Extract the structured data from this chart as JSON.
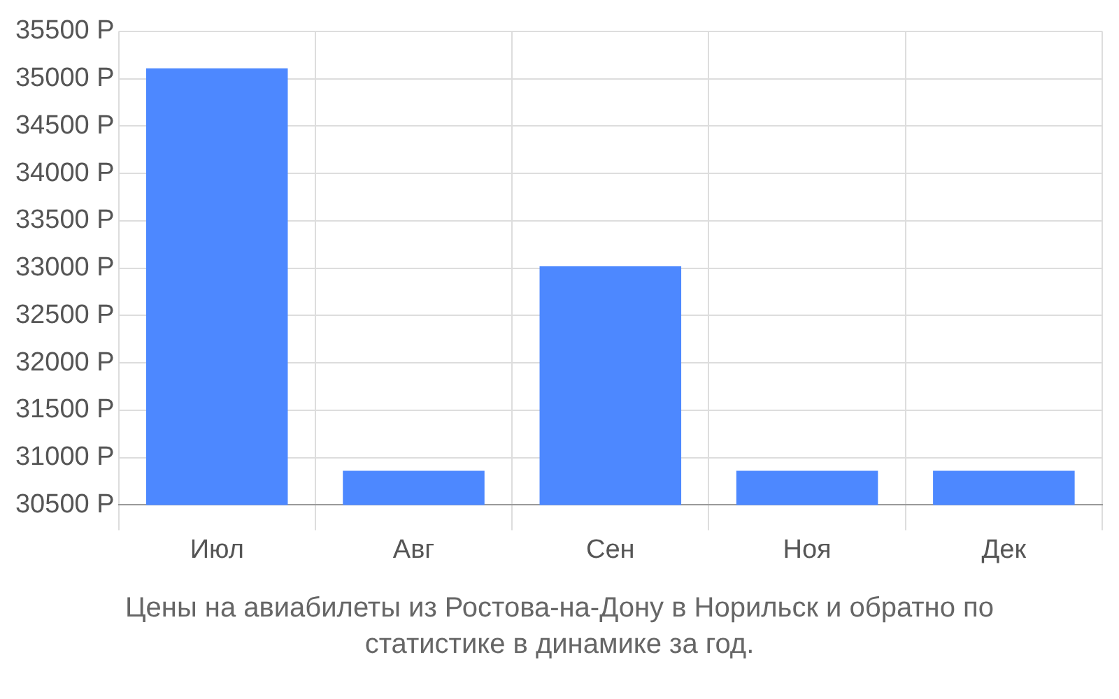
{
  "chart_data": {
    "type": "bar",
    "categories": [
      "Июл",
      "Авг",
      "Сен",
      "Ноя",
      "Дек"
    ],
    "values": [
      35110,
      30860,
      33020,
      30860,
      30860
    ],
    "color": "#4d88ff",
    "ylim": [
      30500,
      35500
    ],
    "yticks": [
      {
        "value": 30500,
        "label": "30500 Р"
      },
      {
        "value": 31000,
        "label": "31000 Р"
      },
      {
        "value": 31500,
        "label": "31500 Р"
      },
      {
        "value": 32000,
        "label": "32000 Р"
      },
      {
        "value": 32500,
        "label": "32500 Р"
      },
      {
        "value": 33000,
        "label": "33000 Р"
      },
      {
        "value": 33500,
        "label": "33500 Р"
      },
      {
        "value": 34000,
        "label": "34000 Р"
      },
      {
        "value": 34500,
        "label": "34500 Р"
      },
      {
        "value": 35000,
        "label": "35000 Р"
      },
      {
        "value": 35500,
        "label": "35500 Р"
      }
    ],
    "grid": true,
    "annotations": [
      "Цены на авиабилеты из Ростова-на-Дону в Норильск и обратно по статистике в динамике за год."
    ]
  }
}
